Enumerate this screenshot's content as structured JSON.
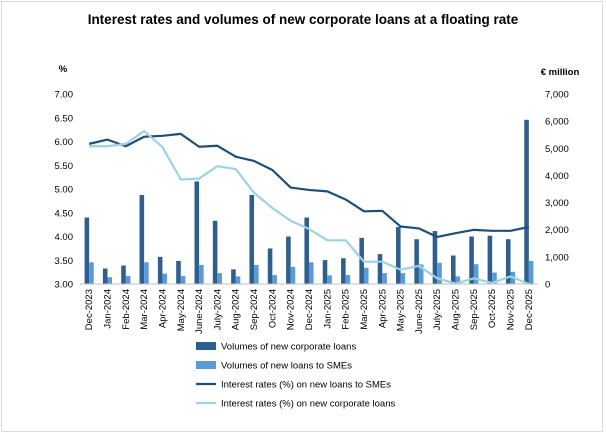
{
  "chart_data": {
    "type": "bar+line",
    "title": "Interest rates and volumes of new corporate loans at a  floating rate",
    "left_axis": {
      "label": "%",
      "min": 3.0,
      "max": 7.0,
      "step": 0.5,
      "ticks": [
        "3.00",
        "3.50",
        "4.00",
        "4.50",
        "5.00",
        "5.50",
        "6.00",
        "6.50",
        "7.00"
      ]
    },
    "right_axis": {
      "label": "€ million",
      "min": 0,
      "max": 7000,
      "step": 1000,
      "ticks": [
        "0",
        "1,000",
        "2,000",
        "3,000",
        "4,000",
        "5,000",
        "6,000",
        "7,000"
      ]
    },
    "categories": [
      "Dec-2023",
      "Jan-2024",
      "Feb-2024",
      "Mar-2024",
      "Apr-2024",
      "May-2024",
      "June-2024",
      "July-2024",
      "Aug-2024",
      "Sep-2024",
      "Oct-2024",
      "Nov-2024",
      "Dec-2024",
      "Jan-2025",
      "Feb-2025",
      "Mar-2025",
      "Apr-2025",
      "May-2025",
      "June-2025",
      "July-2025",
      "Aug-2025",
      "Sep-2025",
      "Oct-2025",
      "Nov-2025",
      "Dec-2025"
    ],
    "bar_series": [
      {
        "name": "Volumes of new corporate loans",
        "axis": "right",
        "color": "#2f5f8f",
        "values": [
          2450,
          570,
          680,
          3280,
          1000,
          850,
          3780,
          2330,
          540,
          3280,
          1310,
          1750,
          2450,
          880,
          950,
          1700,
          1100,
          2100,
          1650,
          1950,
          1050,
          1750,
          1780,
          1650,
          6050
        ]
      },
      {
        "name": "Volumes of new loans to SMEs",
        "axis": "right",
        "color": "#5b9bd5",
        "values": [
          800,
          250,
          300,
          800,
          380,
          300,
          700,
          400,
          280,
          700,
          330,
          630,
          800,
          320,
          330,
          600,
          400,
          400,
          720,
          780,
          280,
          730,
          420,
          450,
          850
        ]
      }
    ],
    "line_series": [
      {
        "name": "Interest rates (%) on new loans to SMEs",
        "axis": "left",
        "color": "#1f4e79",
        "values": [
          5.95,
          6.04,
          5.9,
          6.1,
          6.12,
          6.16,
          5.89,
          5.91,
          5.68,
          5.59,
          5.4,
          5.03,
          4.98,
          4.95,
          4.78,
          4.53,
          4.54,
          4.21,
          4.17,
          3.99,
          4.07,
          4.14,
          4.12,
          4.12,
          4.2
        ]
      },
      {
        "name": "Interest rates (%) on new corporate loans",
        "axis": "left",
        "color": "#9cd3e3",
        "values": [
          5.9,
          5.9,
          5.95,
          6.22,
          5.88,
          5.2,
          5.22,
          5.48,
          5.42,
          4.92,
          4.6,
          4.33,
          4.16,
          3.92,
          3.92,
          3.47,
          3.47,
          3.3,
          3.38,
          3.12,
          3.01,
          3.12,
          3.02,
          3.16,
          3.0
        ]
      }
    ]
  }
}
